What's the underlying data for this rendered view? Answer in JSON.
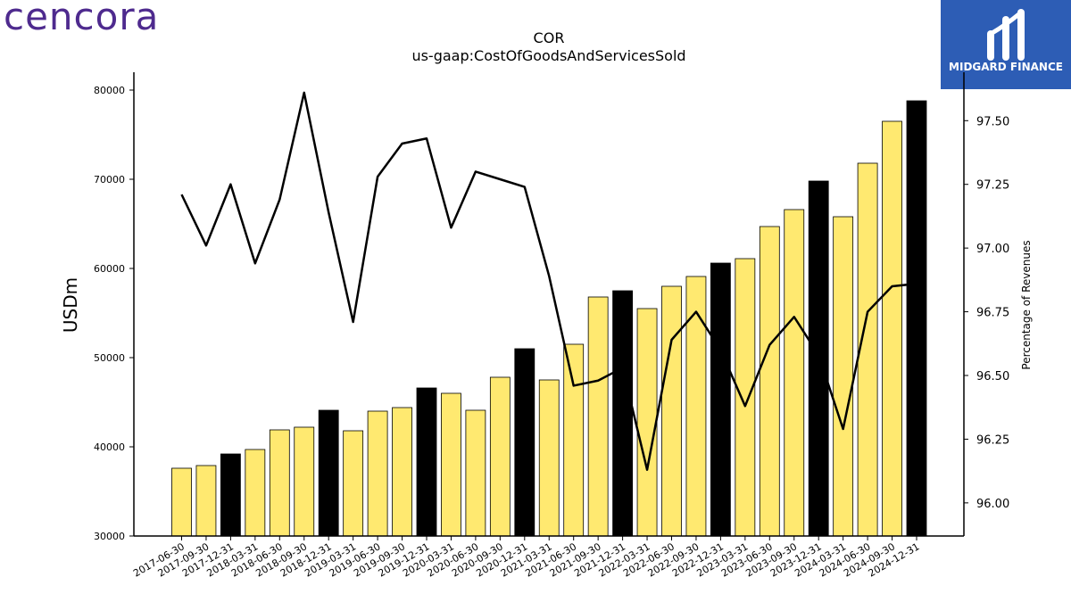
{
  "branding": {
    "left_logo": "cencora",
    "right_logo": "MIDGARD FINANCE",
    "accent_purple": "#4e2a8e",
    "accent_blue": "#2d5db5"
  },
  "chart_data": {
    "type": "bar",
    "title": "COR",
    "subtitle": "us-gaap:CostOfGoodsAndServicesSold",
    "ylabel": "USDm",
    "y2label": "Percentage of Revenues",
    "ylim": [
      30000,
      82000
    ],
    "y2lim": [
      95.87,
      97.69
    ],
    "yticks": [
      30000,
      40000,
      50000,
      60000,
      70000,
      80000
    ],
    "y2ticks": [
      "96.00",
      "96.25",
      "96.50",
      "96.75",
      "97.00",
      "97.25",
      "97.50"
    ],
    "categories": [
      "2017-06-30",
      "2017-09-30",
      "2017-12-31",
      "2018-03-31",
      "2018-06-30",
      "2018-09-30",
      "2018-12-31",
      "2019-03-31",
      "2019-06-30",
      "2019-09-30",
      "2019-12-31",
      "2020-03-31",
      "2020-06-30",
      "2020-09-30",
      "2020-12-31",
      "2021-03-31",
      "2021-06-30",
      "2021-09-30",
      "2021-12-31",
      "2022-03-31",
      "2022-06-30",
      "2022-09-30",
      "2022-12-31",
      "2023-03-31",
      "2023-06-30",
      "2023-09-30",
      "2023-12-31",
      "2024-03-31",
      "2024-06-30",
      "2024-09-30",
      "2024-12-31"
    ],
    "series": [
      {
        "type": "bar",
        "values": [
          37600,
          37900,
          39200,
          39700,
          41900,
          42200,
          44100,
          41800,
          44000,
          44400,
          46600,
          46000,
          44100,
          47800,
          51000,
          47500,
          51500,
          56800,
          57500,
          55500,
          58000,
          59100,
          60600,
          61100,
          64700,
          66600,
          69800,
          65800,
          71800,
          76500,
          78800
        ],
        "colors": [
          "#ffe970",
          "#ffe970",
          "#000000",
          "#ffe970",
          "#ffe970",
          "#ffe970",
          "#000000",
          "#ffe970",
          "#ffe970",
          "#ffe970",
          "#000000",
          "#ffe970",
          "#ffe970",
          "#ffe970",
          "#000000",
          "#ffe970",
          "#ffe970",
          "#ffe970",
          "#000000",
          "#ffe970",
          "#ffe970",
          "#ffe970",
          "#000000",
          "#ffe970",
          "#ffe970",
          "#ffe970",
          "#000000",
          "#ffe970",
          "#ffe970",
          "#ffe970",
          "#000000"
        ]
      },
      {
        "type": "line",
        "axis": "right",
        "values": [
          97.21,
          97.01,
          97.25,
          96.94,
          97.19,
          97.61,
          97.14,
          96.71,
          97.28,
          97.41,
          97.43,
          97.08,
          97.3,
          97.27,
          97.24,
          96.89,
          96.46,
          96.48,
          96.53,
          96.13,
          96.64,
          96.75,
          96.6,
          96.38,
          96.62,
          96.73,
          96.58,
          96.29,
          96.75,
          96.85,
          96.86
        ]
      }
    ],
    "legend": "none",
    "grid": false
  }
}
